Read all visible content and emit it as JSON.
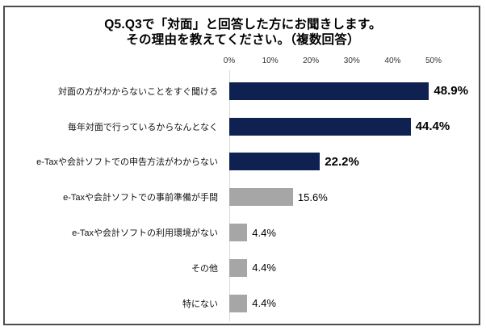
{
  "chart_data": {
    "type": "bar",
    "orientation": "horizontal",
    "title_lines": [
      "Q5.Q3で「対面」と回答した方にお聞きします。",
      "その理由を教えてください。（複数回答）"
    ],
    "categories": [
      "対面の方がわからないことをすぐ聞ける",
      "毎年対面で行っているからなんとなく",
      "e-Taxや会計ソフトでの申告方法がわからない",
      "e-Taxや会計ソフトでの事前準備が手間",
      "e-Taxや会計ソフトの利用環境がない",
      "その他",
      "特にない"
    ],
    "values": [
      48.9,
      44.4,
      22.2,
      15.6,
      4.4,
      4.4,
      4.4
    ],
    "value_labels": [
      "48.9%",
      "44.4%",
      "22.2%",
      "15.6%",
      "4.4%",
      "4.4%",
      "4.4%"
    ],
    "emphasized": [
      true,
      true,
      true,
      false,
      false,
      false,
      false
    ],
    "x_ticks": [
      "0%",
      "10%",
      "20%",
      "30%",
      "40%",
      "50%"
    ],
    "xlim": [
      0,
      50
    ],
    "grid": "zero-line-only",
    "legend": "none",
    "colors": {
      "primary_bar": "#0e2150",
      "secondary_bar": "#a6a6a6",
      "gridline": "#d9d9d9",
      "frame": "#4d4d4d"
    }
  }
}
